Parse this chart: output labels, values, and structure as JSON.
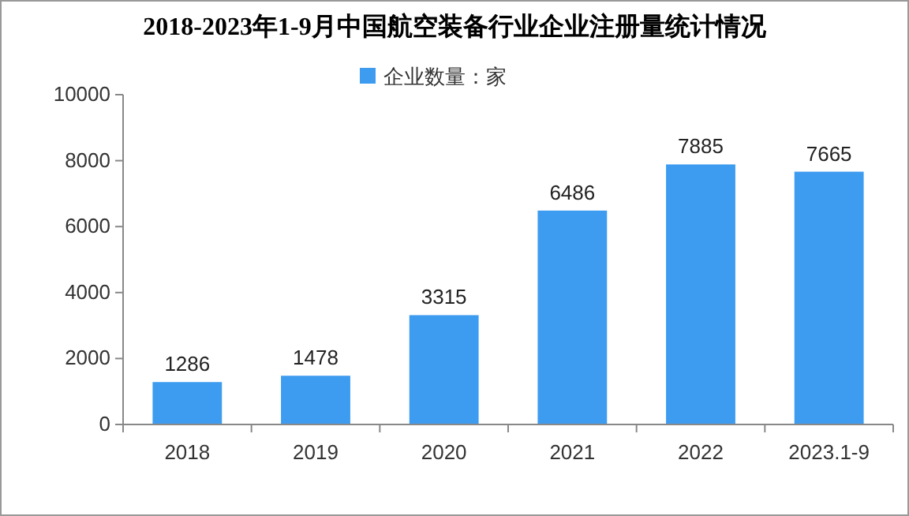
{
  "chart_data": {
    "type": "bar",
    "title": "2018-2023年1-9月中国航空装备行业企业注册量统计情况",
    "categories": [
      "2018",
      "2019",
      "2020",
      "2021",
      "2022",
      "2023.1-9"
    ],
    "series": [
      {
        "name": "企业数量：家",
        "color": "#3d9cf0",
        "values": [
          1286,
          1478,
          3315,
          6486,
          7885,
          7665
        ]
      }
    ],
    "ylim": [
      0,
      10000
    ],
    "yticks": [
      0,
      2000,
      4000,
      6000,
      8000,
      10000
    ],
    "grid": false,
    "legend": "top",
    "data_labels": true
  }
}
